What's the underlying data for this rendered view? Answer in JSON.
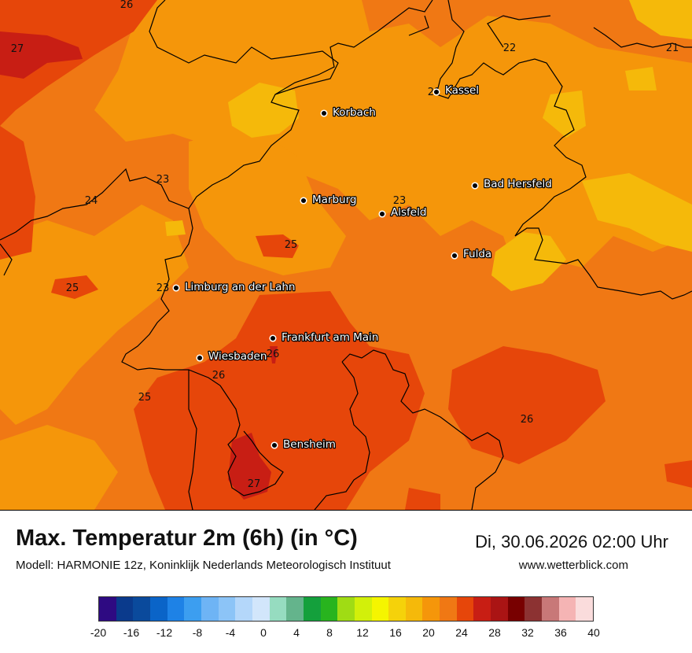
{
  "title": "Max. Temperatur 2m (6h) (in °C)",
  "subtitle": "Modell: HARMONIE 12z, Koninklijk Nederlands Meteorologisch Instituut",
  "datetime": "Di, 30.06.2026 02:00 Uhr",
  "website": "www.wetterblick.com",
  "cities": [
    {
      "name": "Kassel"
    },
    {
      "name": "Korbach"
    },
    {
      "name": "Bad Hersfeld"
    },
    {
      "name": "Marburg"
    },
    {
      "name": "Alsfeld"
    },
    {
      "name": "Fulda"
    },
    {
      "name": "Limburg an der Lahn"
    },
    {
      "name": "Frankfurt am Main"
    },
    {
      "name": "Wiesbaden"
    },
    {
      "name": "Bensheim"
    }
  ],
  "contour_labels": [
    "26",
    "27",
    "22",
    "21",
    "21",
    "23",
    "24",
    "23",
    "25",
    "25",
    "23",
    "26",
    "26",
    "25",
    "26",
    "27"
  ],
  "legend": {
    "colors": [
      "#2e0a82",
      "#0a3a8c",
      "#0a4a9c",
      "#0a64c8",
      "#1e82e6",
      "#3c9ef0",
      "#6eb4f5",
      "#8cc4f7",
      "#b4d7fa",
      "#d2e6fb",
      "#96dcc0",
      "#64b48c",
      "#14a03c",
      "#28b41e",
      "#a0dc14",
      "#d2f00a",
      "#f5f500",
      "#f5d20a",
      "#f5b90a",
      "#f5960a",
      "#f07814",
      "#e6460a",
      "#c81e14",
      "#aa1414",
      "#780000",
      "#8c3232",
      "#c87878",
      "#f5b4b4",
      "#fadcdc"
    ],
    "ticks": [
      "-20",
      "-16",
      "-12",
      "-8",
      "-4",
      "0",
      "4",
      "8",
      "12",
      "16",
      "20",
      "24",
      "28",
      "32",
      "36",
      "40"
    ],
    "min": -20,
    "max": 40
  }
}
